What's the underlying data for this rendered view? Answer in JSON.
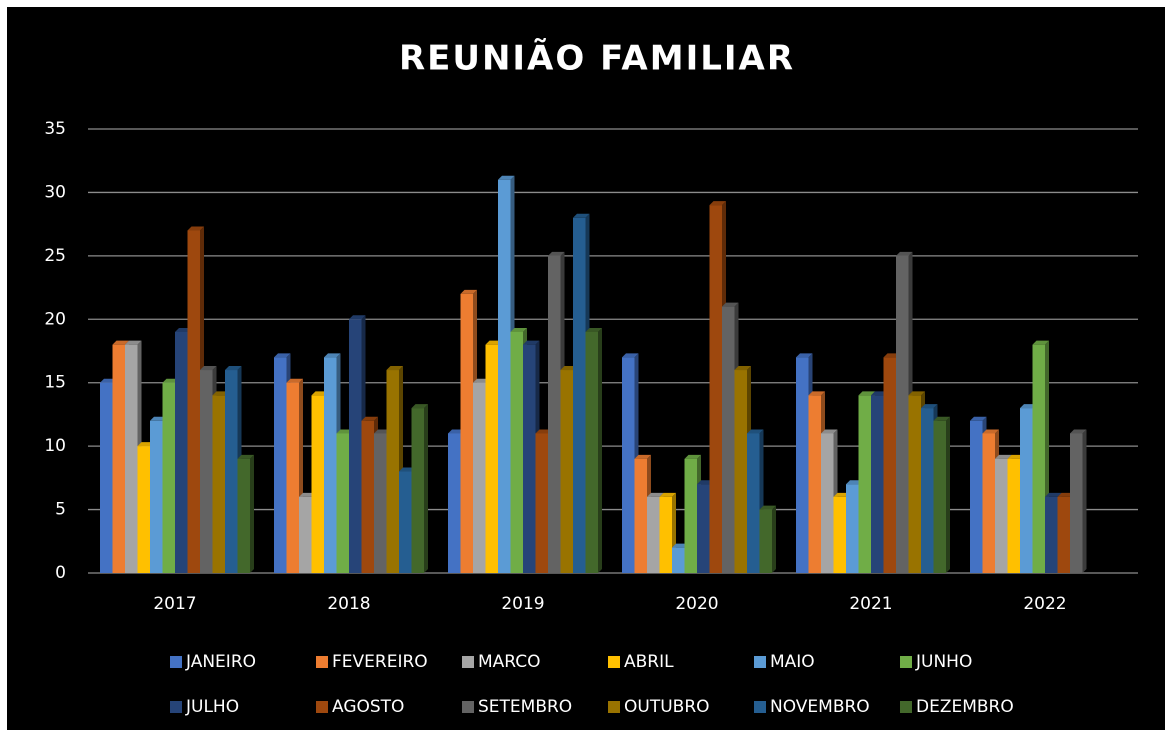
{
  "chart_data": {
    "type": "bar",
    "title": "REUNIÃO FAMILIAR",
    "categories": [
      "2017",
      "2018",
      "2019",
      "2020",
      "2021",
      "2022"
    ],
    "series": [
      {
        "name": "JANEIRO",
        "color": "#4472c4",
        "values": [
          15,
          17,
          11,
          17,
          17,
          12
        ]
      },
      {
        "name": "FEVEREIRO",
        "color": "#ed7d31",
        "values": [
          18,
          15,
          22,
          9,
          14,
          11
        ]
      },
      {
        "name": "MARCO",
        "color": "#a5a5a5",
        "values": [
          18,
          6,
          15,
          6,
          11,
          9
        ]
      },
      {
        "name": "ABRIL",
        "color": "#ffc000",
        "values": [
          10,
          14,
          18,
          6,
          6,
          9
        ]
      },
      {
        "name": "MAIO",
        "color": "#5b9bd5",
        "values": [
          12,
          17,
          31,
          2,
          7,
          13
        ]
      },
      {
        "name": "JUNHO",
        "color": "#70ad47",
        "values": [
          15,
          11,
          19,
          9,
          14,
          18
        ]
      },
      {
        "name": "JULHO",
        "color": "#264478",
        "values": [
          19,
          20,
          18,
          7,
          14,
          6
        ]
      },
      {
        "name": "AGOSTO",
        "color": "#9e480e",
        "values": [
          27,
          12,
          11,
          29,
          17,
          6
        ]
      },
      {
        "name": "SETEMBRO",
        "color": "#636363",
        "values": [
          16,
          11,
          25,
          21,
          25,
          11
        ]
      },
      {
        "name": "OUTUBRO",
        "color": "#997300",
        "values": [
          14,
          16,
          16,
          16,
          14,
          null
        ]
      },
      {
        "name": "NOVEMBRO",
        "color": "#255e91",
        "values": [
          16,
          8,
          28,
          11,
          13,
          null
        ]
      },
      {
        "name": "DEZEMBRO",
        "color": "#43682b",
        "values": [
          9,
          13,
          19,
          5,
          12,
          null
        ]
      }
    ],
    "ylim": [
      0,
      35
    ],
    "yticks": [
      0,
      5,
      10,
      15,
      20,
      25,
      30,
      35
    ],
    "grid": true
  }
}
